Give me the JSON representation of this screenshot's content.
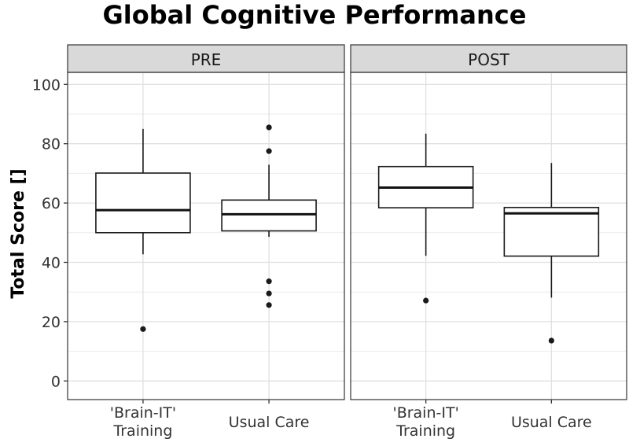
{
  "chart_data": {
    "type": "boxplot",
    "title": "Global Cognitive Performance",
    "xlabel": "",
    "ylabel": "Total Score []",
    "ylim": [
      0,
      100
    ],
    "yticks": [
      0,
      20,
      40,
      60,
      80,
      100
    ],
    "grid": true,
    "categories": [
      "'Brain-IT' Training",
      "Usual Care"
    ],
    "category_lines": [
      [
        "'Brain-IT'",
        "Training"
      ],
      [
        "Usual Care"
      ]
    ],
    "panels": [
      {
        "label": "PRE",
        "boxes": [
          {
            "category": "'Brain-IT' Training",
            "whisker_low": 42.7,
            "q1": 50.0,
            "median": 57.6,
            "q3": 70.1,
            "whisker_high": 85.0,
            "outliers": [
              17.5
            ]
          },
          {
            "category": "Usual Care",
            "whisker_low": 48.6,
            "q1": 50.6,
            "median": 56.2,
            "q3": 61.0,
            "whisker_high": 72.9,
            "outliers": [
              85.5,
              77.5,
              33.6,
              29.5,
              25.6
            ]
          }
        ]
      },
      {
        "label": "POST",
        "boxes": [
          {
            "category": "'Brain-IT' Training",
            "whisker_low": 42.2,
            "q1": 58.4,
            "median": 65.2,
            "q3": 72.3,
            "whisker_high": 83.4,
            "outliers": [
              27.1
            ]
          },
          {
            "category": "Usual Care",
            "whisker_low": 28.1,
            "q1": 42.1,
            "median": 56.5,
            "q3": 58.5,
            "whisker_high": 73.5,
            "outliers": [
              13.6
            ]
          }
        ]
      }
    ]
  }
}
